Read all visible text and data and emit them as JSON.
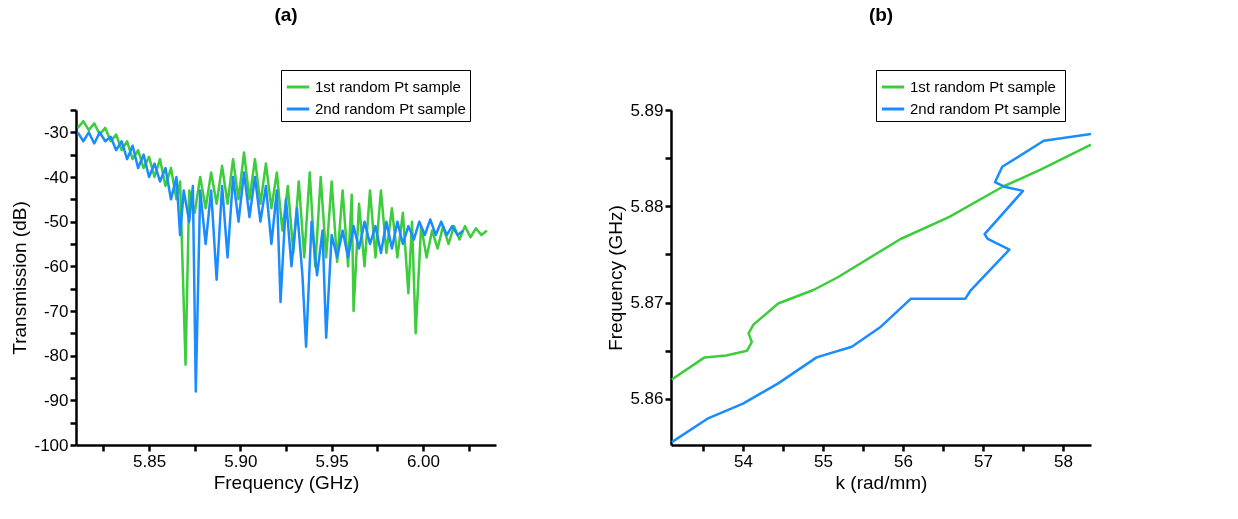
{
  "chart_data": [
    {
      "type": "line",
      "title": "(a)",
      "xlabel": "Frequency (GHz)",
      "ylabel": "Transmission (dB)",
      "xlim": [
        5.81,
        6.04
      ],
      "ylim": [
        -100,
        -25
      ],
      "xticks": [
        {
          "value": 5.825,
          "label": null
        },
        5.85,
        {
          "value": 5.875,
          "label": null
        },
        {
          "value": 5.9,
          "label": "5.90"
        },
        {
          "value": 5.925,
          "label": null
        },
        5.95,
        {
          "value": 5.975,
          "label": null
        },
        {
          "value": 6.0,
          "label": "6.00"
        },
        {
          "value": 6.025,
          "label": null
        }
      ],
      "yticks": [
        -100,
        {
          "value": -95,
          "label": null
        },
        -90,
        {
          "value": -85,
          "label": null
        },
        -80,
        {
          "value": -75,
          "label": null
        },
        -70,
        {
          "value": -65,
          "label": null
        },
        -60,
        {
          "value": -55,
          "label": null
        },
        -50,
        {
          "value": -45,
          "label": null
        },
        -40,
        {
          "value": -35,
          "label": null
        },
        -30,
        {
          "value": -25,
          "label": null
        }
      ],
      "grid": false,
      "legend": "top right",
      "series": [
        {
          "name": "1st random Pt sample",
          "color": "#3ccc3c",
          "x": [
            5.811,
            5.814,
            5.817,
            5.82,
            5.823,
            5.826,
            5.829,
            5.832,
            5.835,
            5.838,
            5.841,
            5.844,
            5.847,
            5.85,
            5.853,
            5.856,
            5.859,
            5.862,
            5.865,
            5.867,
            5.87,
            5.872,
            5.875,
            5.878,
            5.881,
            5.884,
            5.887,
            5.89,
            5.893,
            5.896,
            5.899,
            5.902,
            5.905,
            5.908,
            5.911,
            5.914,
            5.917,
            5.92,
            5.923,
            5.926,
            5.929,
            5.932,
            5.935,
            5.938,
            5.941,
            5.944,
            5.947,
            5.95,
            5.953,
            5.956,
            5.959,
            5.961,
            5.962,
            5.965,
            5.968,
            5.971,
            5.974,
            5.977,
            5.98,
            5.983,
            5.986,
            5.989,
            5.992,
            5.994,
            5.996,
            5.999,
            6.002,
            6.005,
            6.008,
            6.011,
            6.014,
            6.017,
            6.02,
            6.023,
            6.026,
            6.029,
            6.032,
            6.035
          ],
          "values": [
            -29,
            -27.5,
            -29.5,
            -28,
            -30.5,
            -29,
            -32,
            -30.5,
            -34,
            -32,
            -36,
            -34,
            -38,
            -35.5,
            -40,
            -36,
            -42,
            -38,
            -45,
            -41,
            -82,
            -43,
            -48,
            -40,
            -47,
            -39,
            -46,
            -37.5,
            -46,
            -36,
            -45,
            -34.5,
            -45,
            -36,
            -46,
            -37,
            -47,
            -39,
            -52,
            -42,
            -57,
            -41,
            -58,
            -39,
            -60,
            -40,
            -58,
            -41,
            -59,
            -43,
            -60,
            -44,
            -70,
            -46,
            -60,
            -43,
            -58,
            -43,
            -57,
            -47,
            -58,
            -48,
            -66,
            -50,
            -75,
            -51,
            -58,
            -52,
            -56,
            -51,
            -55,
            -51,
            -54,
            -51,
            -53.5,
            -51.5,
            -53,
            -52
          ]
        },
        {
          "name": "2nd random Pt sample",
          "color": "#1a8cff",
          "x": [
            5.811,
            5.814,
            5.817,
            5.82,
            5.823,
            5.826,
            5.829,
            5.832,
            5.835,
            5.838,
            5.841,
            5.844,
            5.847,
            5.85,
            5.853,
            5.856,
            5.859,
            5.862,
            5.865,
            5.867,
            5.869,
            5.872,
            5.874,
            5.8756,
            5.878,
            5.881,
            5.884,
            5.887,
            5.89,
            5.893,
            5.896,
            5.899,
            5.902,
            5.905,
            5.908,
            5.911,
            5.914,
            5.917,
            5.92,
            5.922,
            5.925,
            5.928,
            5.931,
            5.934,
            5.936,
            5.939,
            5.942,
            5.945,
            5.947,
            5.95,
            5.953,
            5.956,
            5.959,
            5.962,
            5.965,
            5.968,
            5.971,
            5.974,
            5.977,
            5.98,
            5.983,
            5.986,
            5.989,
            5.992,
            5.995,
            5.998,
            6.001,
            6.004,
            6.007,
            6.01,
            6.013,
            6.016,
            6.019,
            6.022
          ],
          "values": [
            -30,
            -32,
            -30,
            -32.5,
            -30,
            -32,
            -31,
            -34,
            -32,
            -36,
            -33,
            -38,
            -35,
            -40,
            -37,
            -41,
            -38,
            -45,
            -40,
            -53,
            -43,
            -50,
            -42,
            -88,
            -43,
            -55,
            -43,
            -63,
            -42,
            -58,
            -40,
            -50,
            -39,
            -49,
            -40,
            -50,
            -42,
            -55,
            -43,
            -68,
            -45,
            -60,
            -47,
            -62,
            -78,
            -50,
            -62,
            -52,
            -76,
            -53,
            -58,
            -52,
            -58,
            -51,
            -56,
            -50,
            -55,
            -51,
            -57,
            -50,
            -56,
            -50,
            -55,
            -51,
            -54,
            -50,
            -53,
            -49.5,
            -53,
            -50,
            -53,
            -51,
            -53,
            -52
          ]
        }
      ]
    },
    {
      "type": "line",
      "title": "(b)",
      "xlabel": "k (rad/mm)",
      "ylabel": "Frequency (GHz)",
      "xlim": [
        53.1,
        58.35
      ],
      "ylim": [
        5.8552,
        5.89
      ],
      "xticks": [
        {
          "value": 53.5,
          "label": null
        },
        54,
        {
          "value": 54.5,
          "label": null
        },
        55,
        {
          "value": 55.5,
          "label": null
        },
        56,
        {
          "value": 56.5,
          "label": null
        },
        57,
        {
          "value": 57.5,
          "label": null
        },
        58
      ],
      "yticks": [
        5.86,
        {
          "value": 5.865,
          "label": null
        },
        5.87,
        {
          "value": 5.875,
          "label": null
        },
        5.88,
        {
          "value": 5.885,
          "label": null
        },
        5.89
      ],
      "grid": false,
      "legend": "top right",
      "series": [
        {
          "name": "1st random Pt sample",
          "color": "#3ccc3c",
          "x": [
            53.11,
            53.52,
            53.79,
            54.05,
            54.11,
            54.07,
            54.13,
            54.44,
            54.88,
            55.18,
            55.97,
            56.58,
            57.24,
            57.72,
            58.35
          ],
          "values": [
            5.862,
            5.8643,
            5.8645,
            5.865,
            5.8659,
            5.8668,
            5.8677,
            5.8699,
            5.8713,
            5.8726,
            5.8766,
            5.8789,
            5.882,
            5.8838,
            5.8864
          ]
        },
        {
          "name": "2nd random Pt sample",
          "color": "#1a8cff",
          "x": [
            53.11,
            53.57,
            54.0,
            54.44,
            54.92,
            55.36,
            55.71,
            56.1,
            56.78,
            56.84,
            57.33,
            57.06,
            57.02,
            57.5,
            57.28,
            57.15,
            57.24,
            57.76,
            58.35
          ],
          "values": [
            5.8555,
            5.858,
            5.8595,
            5.8616,
            5.8643,
            5.8654,
            5.8674,
            5.8704,
            5.8704,
            5.8712,
            5.8755,
            5.8766,
            5.8771,
            5.8816,
            5.882,
            5.8825,
            5.8841,
            5.8868,
            5.8875
          ]
        }
      ]
    }
  ]
}
